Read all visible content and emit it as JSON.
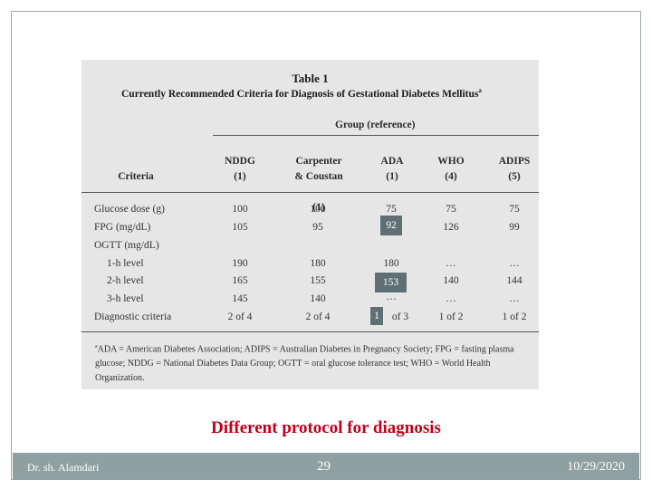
{
  "table": {
    "title": "Table 1",
    "subtitle": "Currently Recommended Criteria for Diagnosis of Gestational Diabetes Mellitus",
    "subtitle_mark": "a",
    "group_header": "Group (reference)",
    "criteria_header": "Criteria",
    "columns": [
      {
        "name": "NDDG",
        "ref": "(1)"
      },
      {
        "name": "Carpenter\n& Coustan",
        "ref": "(1)"
      },
      {
        "name": "ADA",
        "ref": "(1)"
      },
      {
        "name": "WHO",
        "ref": "(4)"
      },
      {
        "name": "ADIPS",
        "ref": "(5)"
      }
    ],
    "rows": [
      {
        "label": "Glucose dose (g)",
        "values": [
          "100",
          "100",
          "75",
          "75",
          "75"
        ]
      },
      {
        "label": "FPG (mg/dL)",
        "values": [
          "105",
          "95",
          "",
          "126",
          "99"
        ]
      },
      {
        "label": "OGTT (mg/dL)",
        "values": [
          "",
          "",
          "",
          "",
          ""
        ]
      },
      {
        "label": "1-h level",
        "values": [
          "190",
          "180",
          "180",
          "…",
          "…"
        ]
      },
      {
        "label": "2-h level",
        "values": [
          "165",
          "155",
          "",
          "140",
          "144"
        ]
      },
      {
        "label": "3-h level",
        "values": [
          "145",
          "140",
          "…",
          "…",
          "…"
        ]
      },
      {
        "label": "Diagnostic criteria",
        "values": [
          "2 of 4",
          "2 of 4",
          "of 3",
          "1 of 2",
          "1 of 2"
        ]
      }
    ],
    "footnote_mark": "a",
    "footnote": "ADA = American Diabetes Association; ADIPS = Australian Diabetes in Pregnancy Society; FPG = fasting plasma glucose; NDDG = National Diabetes Data Group; OGTT = oral glucose tolerance test; WHO = World Health Organization."
  },
  "overlays": {
    "fpg_ada": "92",
    "two_h_ada": "153",
    "criteria_ada": "1"
  },
  "caption": "Different protocol for diagnosis",
  "footer": {
    "author": "Dr. sh. Alamdari",
    "page": "29",
    "date": "10/29/2020"
  },
  "colors": {
    "caption": "#c0001a",
    "footer_bar": "#8fa0a0",
    "overlay_box": "#5f7075",
    "table_bg": "#e6e6e6"
  }
}
